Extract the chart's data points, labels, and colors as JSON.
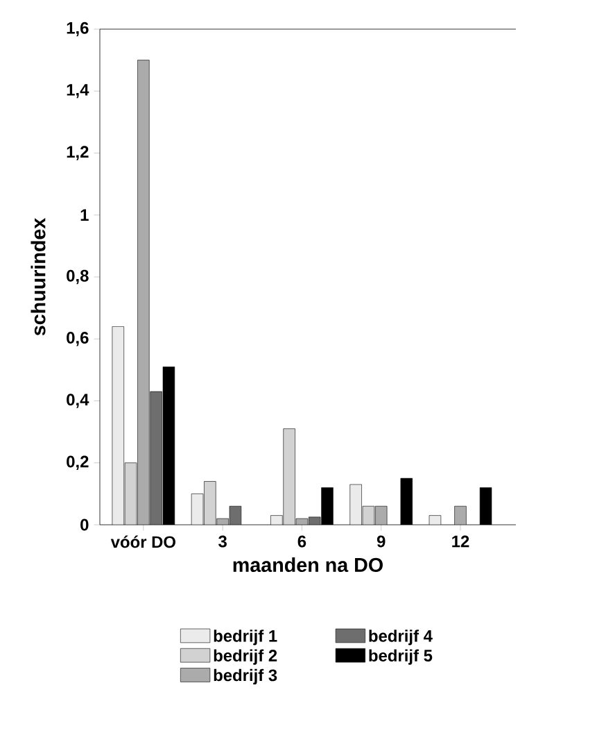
{
  "chart_data": {
    "type": "bar",
    "xlabel": "maanden na DO",
    "ylabel": "schuurindex",
    "categories": [
      "vóór DO",
      "3",
      "6",
      "9",
      "12"
    ],
    "series": [
      {
        "name": "bedrijf 1",
        "color": "#ebebeb",
        "values": [
          0.64,
          0.1,
          0.03,
          0.13,
          0.03
        ]
      },
      {
        "name": "bedrijf 2",
        "color": "#d2d2d2",
        "values": [
          0.2,
          0.14,
          0.31,
          0.06,
          null
        ]
      },
      {
        "name": "bedrijf 3",
        "color": "#ababab",
        "values": [
          1.5,
          0.02,
          0.02,
          0.06,
          0.06
        ]
      },
      {
        "name": "bedrijf 4",
        "color": "#6e6e6e",
        "values": [
          0.43,
          0.06,
          0.025,
          null,
          null
        ]
      },
      {
        "name": "bedrijf 5",
        "color": "#000000",
        "values": [
          0.51,
          null,
          0.12,
          0.15,
          0.12
        ]
      }
    ],
    "ylim": [
      0,
      1.6
    ],
    "yticks": [
      0,
      {
        "value": 0.2,
        "label": "0,2"
      },
      {
        "value": 0.4,
        "label": "0,4"
      },
      {
        "value": 0.6,
        "label": "0,6"
      },
      {
        "value": 0.8,
        "label": "0,8"
      },
      1,
      {
        "value": 1.2,
        "label": "1,2"
      },
      {
        "value": 1.4,
        "label": "1,4"
      },
      {
        "value": 1.6,
        "label": "1,6"
      }
    ],
    "grid": false,
    "legend": "bottom"
  }
}
